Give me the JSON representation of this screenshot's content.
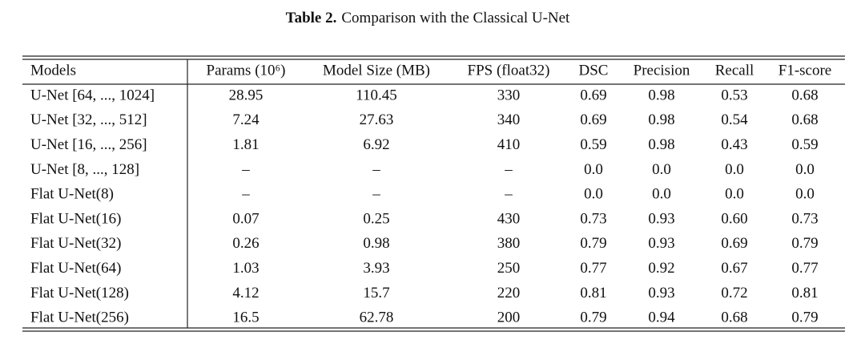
{
  "caption": {
    "label": "Table 2.",
    "text": "Comparison with the Classical U-Net"
  },
  "table": {
    "header": [
      "Models",
      "Params (10⁶)",
      "Model Size (MB)",
      "FPS (float32)",
      "DSC",
      "Precision",
      "Recall",
      "F1-score"
    ],
    "rows": [
      [
        "U-Net [64, ..., 1024]",
        "28.95",
        "110.45",
        "330",
        "0.69",
        "0.98",
        "0.53",
        "0.68"
      ],
      [
        "U-Net [32, ..., 512]",
        "7.24",
        "27.63",
        "340",
        "0.69",
        "0.98",
        "0.54",
        "0.68"
      ],
      [
        "U-Net [16, ..., 256]",
        "1.81",
        "6.92",
        "410",
        "0.59",
        "0.98",
        "0.43",
        "0.59"
      ],
      [
        "U-Net [8, ..., 128]",
        "–",
        "–",
        "–",
        "0.0",
        "0.0",
        "0.0",
        "0.0"
      ],
      [
        "Flat U-Net(8)",
        "–",
        "–",
        "–",
        "0.0",
        "0.0",
        "0.0",
        "0.0"
      ],
      [
        "Flat U-Net(16)",
        "0.07",
        "0.25",
        "430",
        "0.73",
        "0.93",
        "0.60",
        "0.73"
      ],
      [
        "Flat U-Net(32)",
        "0.26",
        "0.98",
        "380",
        "0.79",
        "0.93",
        "0.69",
        "0.79"
      ],
      [
        "Flat U-Net(64)",
        "1.03",
        "3.93",
        "250",
        "0.77",
        "0.92",
        "0.67",
        "0.77"
      ],
      [
        "Flat U-Net(128)",
        "4.12",
        "15.7",
        "220",
        "0.81",
        "0.93",
        "0.72",
        "0.81"
      ],
      [
        "Flat U-Net(256)",
        "16.5",
        "62.78",
        "200",
        "0.79",
        "0.94",
        "0.68",
        "0.79"
      ]
    ]
  }
}
